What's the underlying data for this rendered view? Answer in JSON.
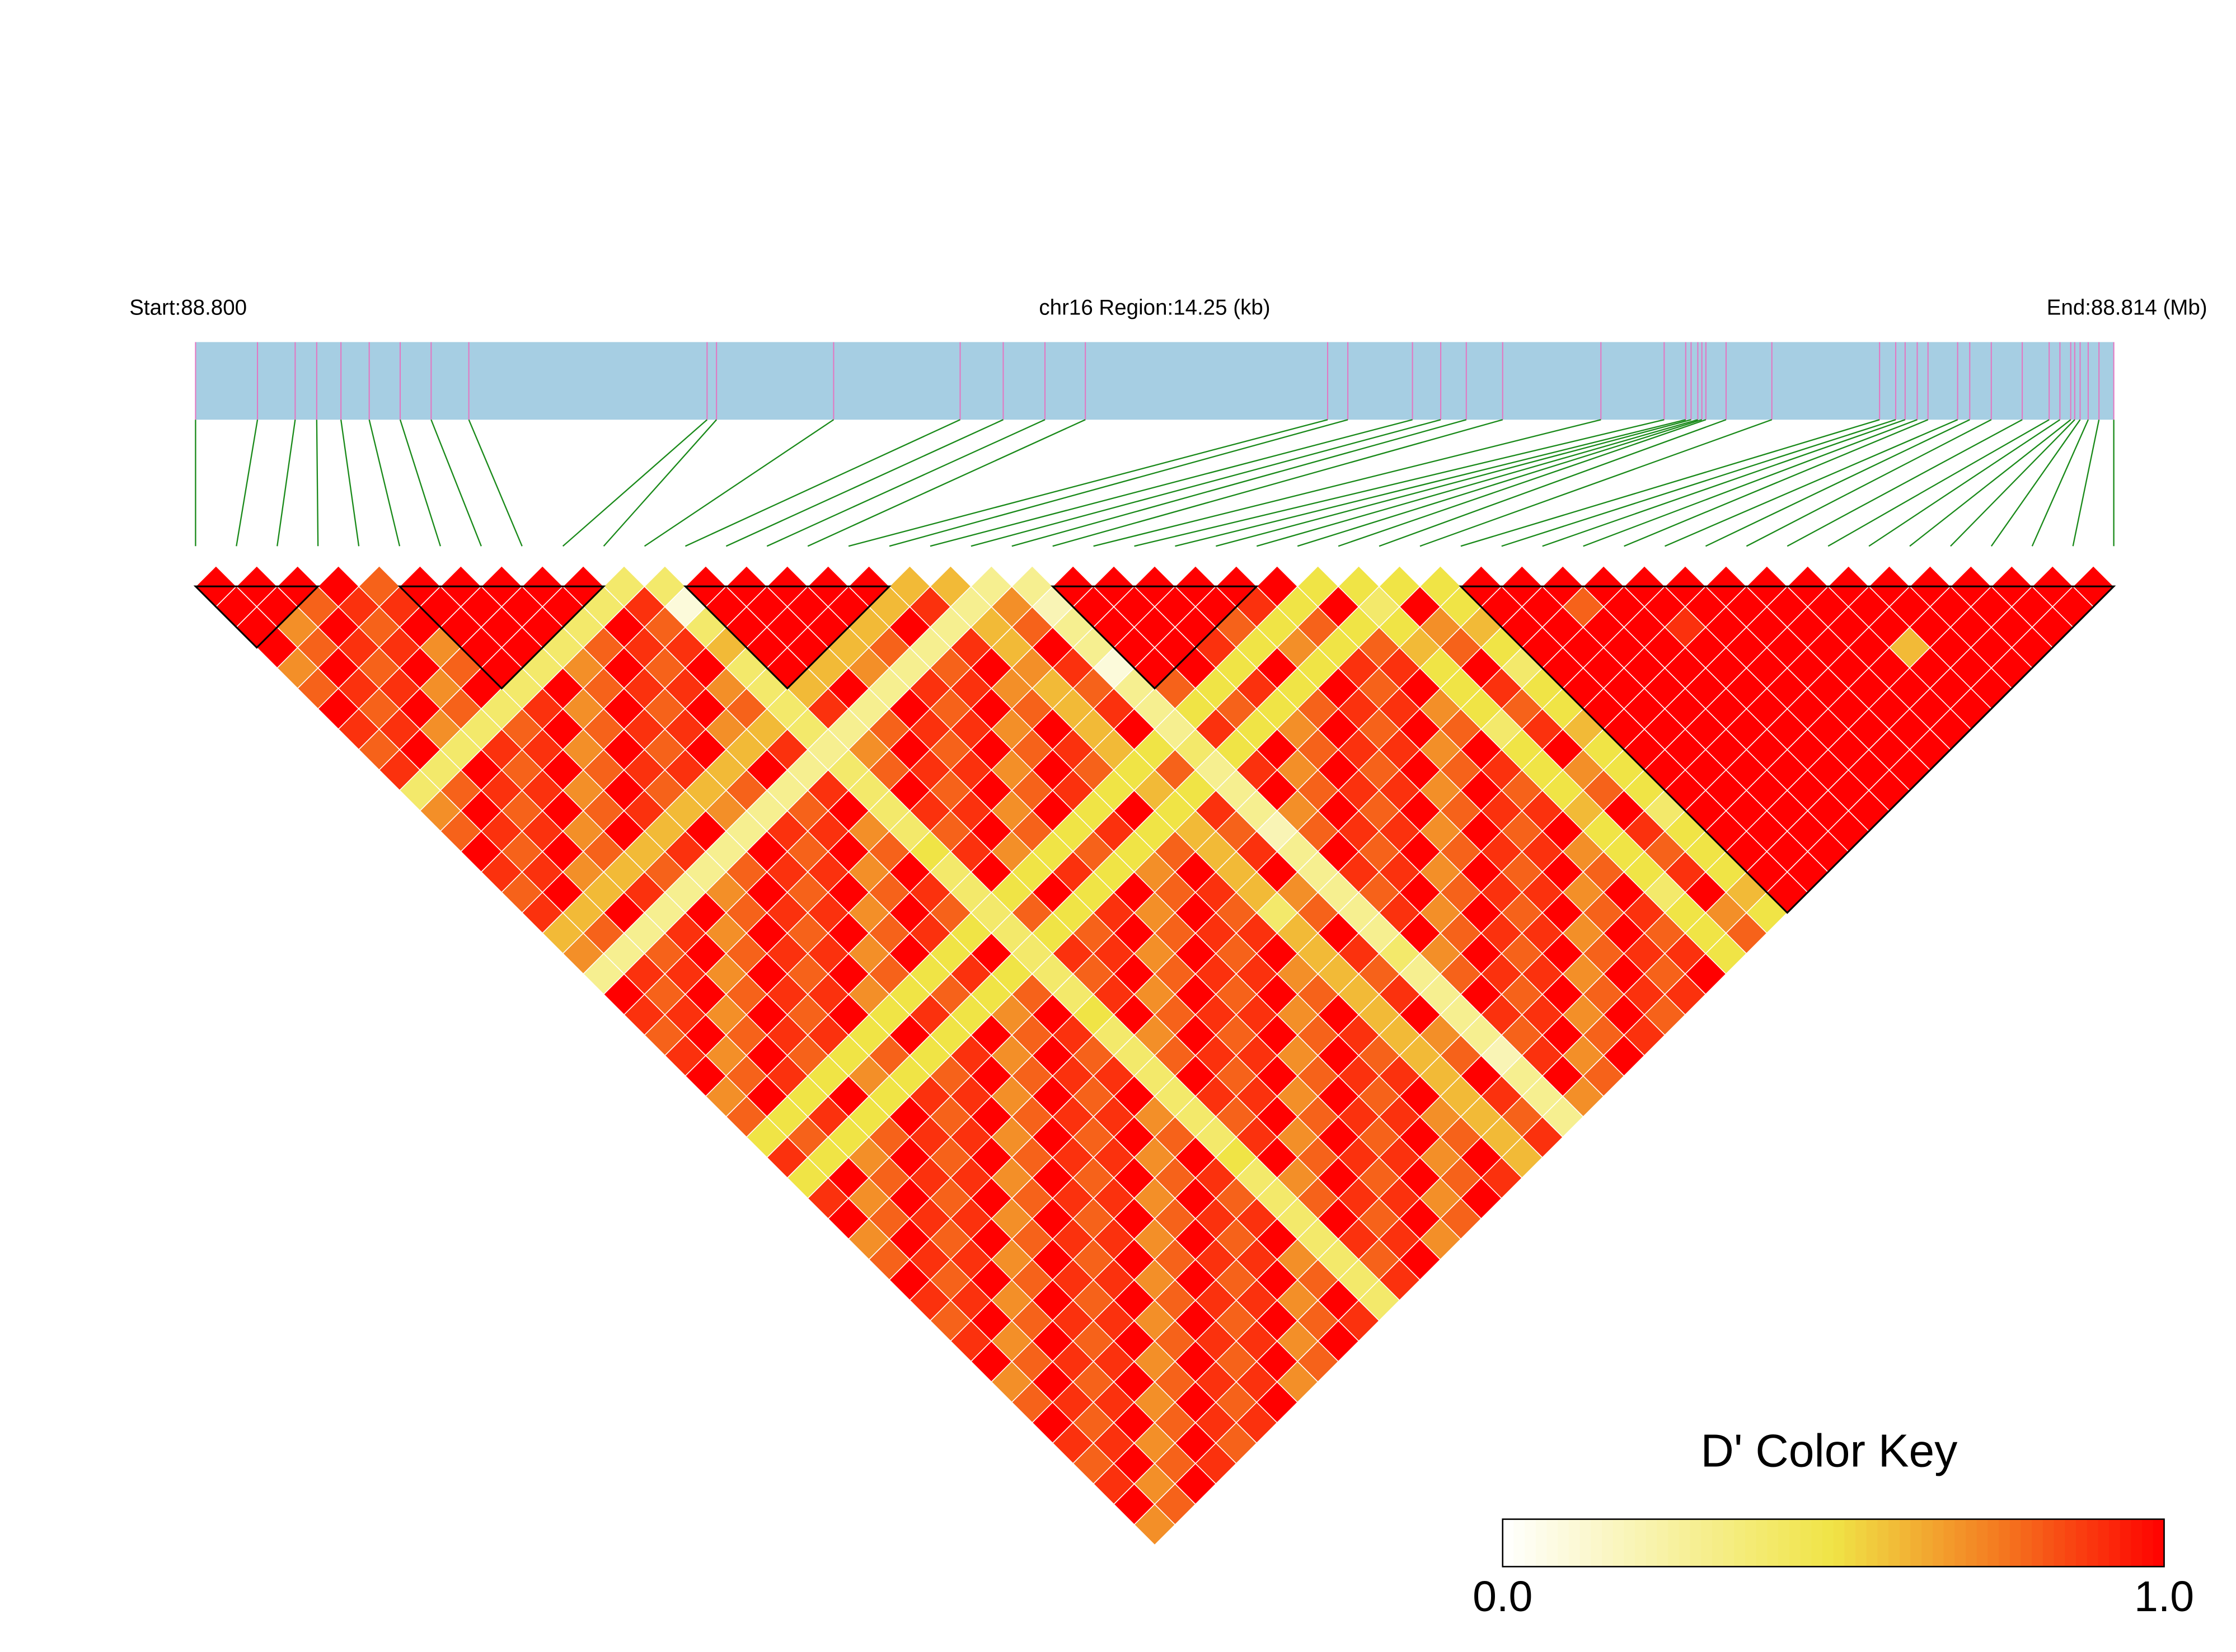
{
  "chart_data": {
    "type": "ld_heatmap",
    "start_label": "Start:88.800",
    "region_label": "chr16 Region:14.25 (kb)",
    "end_label": "End:88.814 (Mb)",
    "xlim": [
      0,
      14.25
    ],
    "snp_positions_kb": [
      0,
      0.46,
      0.74,
      0.9,
      1.08,
      1.29,
      1.52,
      1.75,
      2.03,
      3.8,
      3.87,
      4.74,
      5.68,
      6,
      6.31,
      6.61,
      8.41,
      8.56,
      9.04,
      9.25,
      9.44,
      9.71,
      10.44,
      10.91,
      11.07,
      11.11,
      11.16,
      11.19,
      11.22,
      11.37,
      11.71,
      12.51,
      12.63,
      12.7,
      12.79,
      12.87,
      13.09,
      13.18,
      13.34,
      13.57,
      13.77,
      13.85,
      13.93,
      13.96,
      14,
      14.06,
      14.14,
      14.25
    ],
    "ld_matrix": [
      [
        1,
        1,
        1,
        1,
        0.7,
        0.8,
        1,
        0.9,
        0.8,
        0.9,
        0.4,
        0.7,
        0.8,
        1,
        0.9,
        0.8,
        0.9,
        0.6,
        0.7,
        0.3,
        1,
        0.9,
        0.8,
        0.9,
        1,
        0.7,
        0.8,
        0.5,
        0.9,
        0.5,
        0.9,
        1,
        0.7,
        0.8,
        1,
        0.9,
        0.8,
        0.9,
        1,
        0.7,
        0.8,
        1,
        0.9,
        0.8,
        0.9,
        1,
        0.7
      ],
      [
        1,
        1,
        0.7,
        0.8,
        1,
        0.9,
        0.8,
        0.9,
        1,
        0.4,
        0.8,
        1,
        0.9,
        0.8,
        0.9,
        1,
        0.6,
        0.8,
        0.3,
        0.9,
        0.8,
        0.9,
        1,
        0.7,
        0.8,
        1,
        0.5,
        0.8,
        0.5,
        1,
        0.7,
        0.8,
        1,
        0.9,
        0.8,
        0.9,
        1,
        0.7,
        0.8,
        1,
        0.9,
        0.8,
        0.9,
        1,
        0.7,
        0.8
      ],
      [
        1,
        0.8,
        1,
        0.9,
        0.8,
        0.9,
        1,
        0.7,
        0.4,
        1,
        0.9,
        0.8,
        0.9,
        1,
        0.7,
        0.6,
        1,
        0.3,
        0.8,
        0.9,
        1,
        0.7,
        0.8,
        1,
        0.9,
        0.5,
        0.9,
        0.5,
        0.7,
        0.8,
        1,
        0.9,
        0.8,
        0.9,
        1,
        0.7,
        0.8,
        1,
        0.9,
        0.8,
        0.9,
        1,
        0.7,
        0.8,
        1
      ],
      [
        1,
        0.9,
        0.8,
        0.9,
        1,
        0.7,
        0.8,
        0.4,
        0.9,
        0.8,
        0.9,
        1,
        0.7,
        0.8,
        0.6,
        0.9,
        0.3,
        0.9,
        1,
        0.7,
        0.8,
        1,
        0.9,
        0.8,
        0.5,
        1,
        0.5,
        0.8,
        1,
        0.9,
        0.8,
        0.9,
        1,
        0.7,
        0.8,
        1,
        0.9,
        0.8,
        0.9,
        1,
        0.7,
        0.8,
        1,
        0.9
      ],
      [
        0.8,
        0.9,
        1,
        0.7,
        0.8,
        1,
        0.4,
        0.8,
        0.9,
        1,
        0.7,
        0.8,
        1,
        0.6,
        0.8,
        0.3,
        1,
        0.7,
        0.8,
        1,
        0.9,
        0.8,
        0.9,
        0.5,
        0.7,
        0.5,
        1,
        0.9,
        0.8,
        0.9,
        1,
        0.7,
        0.8,
        1,
        0.9,
        0.8,
        0.9,
        1,
        0.7,
        0.8,
        1,
        0.9,
        0.8
      ],
      [
        1,
        1,
        1,
        1,
        1,
        0.4,
        0.9,
        1,
        0.7,
        0.8,
        1,
        0.9,
        0.6,
        0.9,
        0.3,
        0.7,
        0.8,
        1,
        0.9,
        0.8,
        0.9,
        1,
        0.5,
        0.8,
        0.5,
        0.9,
        0.8,
        0.9,
        1,
        0.7,
        0.8,
        1,
        0.9,
        0.8,
        0.9,
        1,
        0.7,
        0.8,
        1,
        0.9,
        0.8,
        0.9
      ],
      [
        1,
        1,
        1,
        1,
        0.4,
        1,
        0.7,
        0.8,
        1,
        0.9,
        0.8,
        0.6,
        1,
        0.3,
        0.8,
        1,
        0.9,
        0.8,
        0.9,
        1,
        0.7,
        0.5,
        1,
        0.5,
        0.8,
        0.9,
        1,
        0.7,
        0.8,
        1,
        0.9,
        0.8,
        0.9,
        1,
        0.7,
        0.8,
        1,
        0.9,
        0.8,
        0.9,
        1
      ],
      [
        1,
        1,
        1,
        0.4,
        0.7,
        0.8,
        1,
        0.9,
        0.8,
        0.9,
        0.6,
        0.7,
        0.3,
        1,
        0.9,
        0.8,
        0.9,
        1,
        0.7,
        0.8,
        0.5,
        0.9,
        0.5,
        0.9,
        1,
        0.7,
        0.8,
        1,
        0.9,
        0.8,
        0.9,
        1,
        0.7,
        0.8,
        1,
        0.9,
        0.8,
        0.9,
        1,
        0.7
      ],
      [
        1,
        1,
        0.4,
        0.8,
        1,
        0.9,
        0.8,
        0.9,
        1,
        0.6,
        0.8,
        0.3,
        0.9,
        0.8,
        0.9,
        1,
        0.7,
        0.8,
        1,
        0.5,
        0.8,
        0.5,
        1,
        0.7,
        0.8,
        1,
        0.9,
        0.8,
        0.9,
        1,
        0.7,
        0.8,
        1,
        0.9,
        0.8,
        0.9,
        1,
        0.7,
        0.8
      ],
      [
        1,
        0.4,
        1,
        0.9,
        0.8,
        0.9,
        1,
        0.7,
        0.6,
        1,
        0.3,
        0.8,
        0.9,
        1,
        0.7,
        0.8,
        1,
        0.9,
        0.5,
        0.9,
        0.5,
        0.7,
        0.8,
        1,
        0.9,
        0.8,
        0.9,
        1,
        0.7,
        0.8,
        1,
        0.9,
        0.8,
        0.9,
        1,
        0.7,
        0.8,
        1
      ],
      [
        0.4,
        0.9,
        0.8,
        0.9,
        1,
        0.7,
        0.8,
        0.6,
        0.9,
        0.3,
        0.9,
        1,
        0.7,
        0.8,
        1,
        0.9,
        0.8,
        0.5,
        1,
        0.5,
        0.8,
        1,
        0.9,
        0.8,
        0.9,
        1,
        0.7,
        0.8,
        1,
        0.9,
        0.8,
        0.9,
        1,
        0.7,
        0.8,
        1,
        0.9
      ],
      [
        0.4,
        0.1,
        0.4,
        0.6,
        0.4,
        0.4,
        0.4,
        0.4,
        0.3,
        0.4,
        0.4,
        0.4,
        0.4,
        0.5,
        0.4,
        0.4,
        0.4,
        0.4,
        0.4,
        0.4,
        0.4,
        0.5,
        0.4,
        0.4,
        0.4,
        0.4,
        0.4,
        0.4,
        0.5,
        0.4,
        0.4,
        0.4,
        0.4,
        0.4,
        0.4,
        0.4
      ],
      [
        1,
        1,
        1,
        1,
        1,
        0.6,
        0.9,
        0.3,
        0.7,
        0.8,
        1,
        0.9,
        0.8,
        0.9,
        1,
        0.5,
        0.8,
        0.5,
        0.9,
        0.8,
        0.9,
        1,
        0.7,
        0.8,
        1,
        0.9,
        0.8,
        0.9,
        1,
        0.7,
        0.8,
        1,
        0.9,
        0.8,
        0.9
      ],
      [
        1,
        1,
        1,
        1,
        0.6,
        1,
        0.3,
        0.8,
        1,
        0.9,
        0.8,
        0.9,
        1,
        0.7,
        0.5,
        1,
        0.5,
        0.8,
        0.9,
        1,
        0.7,
        0.8,
        1,
        0.9,
        0.8,
        0.9,
        1,
        0.7,
        0.8,
        1,
        0.9,
        0.8,
        0.9,
        1
      ],
      [
        1,
        1,
        1,
        0.6,
        0.7,
        0.3,
        1,
        0.9,
        0.8,
        0.9,
        1,
        0.7,
        0.8,
        0.5,
        0.9,
        0.5,
        0.9,
        1,
        0.7,
        0.8,
        1,
        0.9,
        0.8,
        0.9,
        1,
        0.7,
        0.8,
        1,
        0.9,
        0.8,
        0.9,
        1,
        0.7
      ],
      [
        1,
        1,
        0.6,
        0.8,
        0.3,
        0.9,
        0.8,
        0.9,
        1,
        0.7,
        0.8,
        1,
        0.5,
        0.8,
        0.5,
        1,
        0.7,
        0.8,
        1,
        0.9,
        0.8,
        0.9,
        1,
        0.7,
        0.8,
        1,
        0.9,
        0.8,
        0.9,
        1,
        0.7,
        0.8
      ],
      [
        1,
        0.6,
        1,
        0.3,
        0.8,
        0.9,
        1,
        0.7,
        0.8,
        1,
        0.9,
        0.5,
        0.9,
        0.5,
        0.7,
        0.8,
        1,
        0.9,
        0.8,
        0.9,
        1,
        0.7,
        0.8,
        1,
        0.9,
        0.8,
        0.9,
        1,
        0.7,
        0.8,
        1
      ],
      [
        0.6,
        0.9,
        0.3,
        0.9,
        1,
        0.7,
        0.8,
        1,
        0.9,
        0.8,
        0.5,
        1,
        0.5,
        0.8,
        1,
        0.9,
        0.8,
        0.9,
        1,
        0.7,
        0.8,
        1,
        0.9,
        0.8,
        0.9,
        1,
        0.7,
        0.8,
        1,
        0.9
      ],
      [
        0.6,
        0.3,
        0.6,
        0.6,
        0.7,
        0.6,
        0.6,
        0.6,
        0.6,
        0.5,
        0.6,
        0.5,
        0.6,
        0.6,
        0.6,
        0.6,
        0.4,
        0.6,
        0.6,
        0.6,
        0.6,
        0.6,
        0.6,
        0.6,
        0.6,
        0.6,
        0.6,
        0.6,
        0.6
      ],
      [
        0.3,
        0.7,
        0.8,
        1,
        0.9,
        0.8,
        0.9,
        1,
        0.5,
        0.8,
        0.5,
        0.9,
        0.8,
        0.9,
        1,
        0.7,
        0.8,
        1,
        0.9,
        0.8,
        0.9,
        1,
        0.7,
        0.8,
        1,
        0.9,
        0.8,
        0.9
      ],
      [
        0.3,
        0.2,
        0.3,
        0.3,
        0.1,
        0.3,
        0.3,
        0.3,
        0.4,
        0.3,
        0.3,
        0.3,
        0.2,
        0.3,
        0.3,
        0.3,
        0.3,
        0.3,
        0.4,
        0.3,
        0.3,
        0.3,
        0.3,
        0.2,
        0.3,
        0.3,
        0.3
      ],
      [
        1,
        1,
        1,
        1,
        1,
        0.8,
        0.5,
        0.9,
        0.5,
        0.9,
        1,
        0.7,
        0.8,
        1,
        0.9,
        0.8,
        0.9,
        1,
        0.7,
        0.8,
        1,
        0.9,
        0.8,
        0.9,
        1,
        0.7
      ],
      [
        1,
        1,
        1,
        1,
        1,
        0.5,
        0.8,
        0.5,
        1,
        0.7,
        0.8,
        1,
        0.9,
        0.8,
        0.9,
        1,
        0.7,
        0.8,
        1,
        0.9,
        0.8,
        0.9,
        1,
        0.7,
        0.8
      ],
      [
        1,
        1,
        1,
        0.9,
        0.5,
        0.9,
        0.5,
        0.7,
        0.8,
        1,
        0.9,
        0.8,
        0.9,
        1,
        0.7,
        0.8,
        1,
        0.9,
        0.8,
        0.9,
        1,
        0.7,
        0.8,
        1
      ],
      [
        1,
        1,
        0.8,
        0.5,
        1,
        0.5,
        0.8,
        1,
        0.9,
        0.8,
        0.9,
        1,
        0.7,
        0.8,
        1,
        0.9,
        0.8,
        0.9,
        1,
        0.7,
        0.8,
        1,
        0.9
      ],
      [
        1,
        0.9,
        0.5,
        0.7,
        0.5,
        1,
        0.9,
        0.8,
        0.9,
        1,
        0.7,
        0.8,
        1,
        0.9,
        0.8,
        0.9,
        1,
        0.7,
        0.8,
        1,
        0.9,
        0.8
      ],
      [
        1,
        0.5,
        0.8,
        0.5,
        0.9,
        0.8,
        0.9,
        1,
        0.7,
        0.8,
        1,
        0.9,
        0.8,
        0.9,
        1,
        0.7,
        0.8,
        1,
        0.9,
        0.8,
        0.9
      ],
      [
        0.5,
        1,
        0.5,
        0.8,
        0.9,
        1,
        0.7,
        0.8,
        1,
        0.9,
        0.8,
        0.9,
        1,
        0.7,
        0.8,
        1,
        0.9,
        0.8,
        0.9,
        1
      ],
      [
        0.5,
        0.4,
        0.5,
        0.6,
        0.5,
        0.5,
        0.5,
        0.4,
        0.5,
        0.5,
        0.5,
        0.6,
        0.5,
        0.5,
        0.5,
        0.4,
        0.5,
        0.5,
        0.5
      ],
      [
        0.5,
        1,
        0.7,
        0.8,
        1,
        0.9,
        0.8,
        0.9,
        1,
        0.7,
        0.8,
        1,
        0.9,
        0.8,
        0.9,
        1,
        0.7,
        0.8
      ],
      [
        0.5,
        0.5,
        0.6,
        0.5,
        0.4,
        0.5,
        0.5,
        0.6,
        0.5,
        0.5,
        0.5,
        0.4,
        0.5,
        0.5,
        0.5,
        0.6,
        0.5
      ],
      [
        1,
        1,
        1,
        1,
        1,
        1,
        1,
        1,
        1,
        1,
        1,
        1,
        1,
        1,
        1,
        1
      ],
      [
        1,
        1,
        1,
        1,
        1,
        1,
        1,
        1,
        1,
        1,
        1,
        1,
        1,
        1,
        1
      ],
      [
        1,
        0.8,
        1,
        1,
        1,
        1,
        1,
        1,
        1,
        1,
        1,
        1,
        1,
        1
      ],
      [
        1,
        1,
        1,
        1,
        1,
        1,
        1,
        1,
        1,
        1,
        1,
        1,
        1
      ],
      [
        1,
        1,
        0.9,
        1,
        1,
        1,
        1,
        1,
        1,
        1,
        1,
        1
      ],
      [
        1,
        1,
        1,
        1,
        1,
        1,
        1,
        1,
        1,
        1,
        1
      ],
      [
        1,
        1,
        1,
        1,
        1,
        1,
        1,
        1,
        1,
        1
      ],
      [
        1,
        1,
        1,
        1,
        1,
        1,
        1,
        1,
        1
      ],
      [
        1,
        1,
        1,
        1,
        1,
        1,
        1,
        1
      ],
      [
        1,
        1,
        1,
        0.6,
        1,
        1,
        1
      ],
      [
        1,
        1,
        1,
        1,
        1,
        1
      ],
      [
        1,
        1,
        1,
        1,
        1
      ],
      [
        1,
        1,
        1,
        1
      ],
      [
        1,
        1,
        1
      ],
      [
        1,
        1
      ],
      [
        1
      ]
    ],
    "blocks": [
      [
        0,
        3
      ],
      [
        5,
        10
      ],
      [
        12,
        17
      ],
      [
        21,
        26
      ],
      [
        31,
        47
      ]
    ],
    "gene_bar_color": "#a6cee3",
    "snp_line_color": "#e377c2",
    "connector_color": "#1a8a1a",
    "block_outline_color": "#000000",
    "cell_border_color": "#ffffff",
    "color_key": {
      "title": "D' Color Key",
      "lim": [
        0,
        1
      ],
      "ticks": [
        {
          "value": 0,
          "label": "0.0"
        },
        {
          "value": 1,
          "label": "1.0"
        }
      ],
      "stops": [
        [
          0,
          "#ffffff"
        ],
        [
          0.5,
          "#f0e446"
        ],
        [
          0.75,
          "#f47a20"
        ],
        [
          1,
          "#ff0000"
        ]
      ]
    }
  }
}
